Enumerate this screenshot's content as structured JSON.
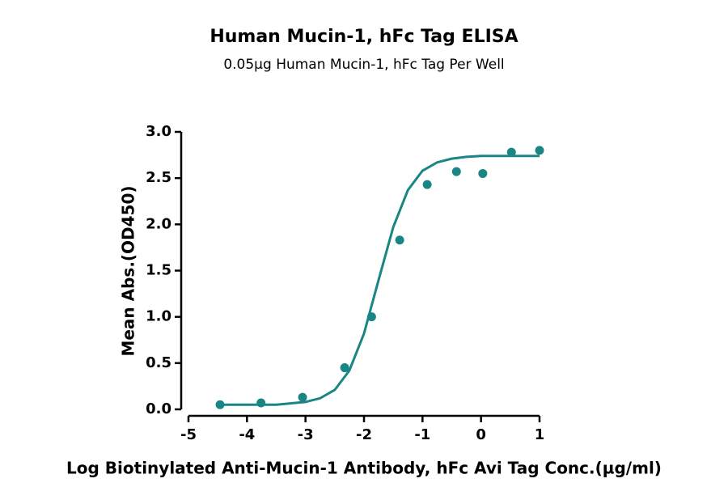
{
  "chart_data": {
    "type": "scatter",
    "title": "Human Mucin-1, hFc Tag ELISA",
    "subtitle": "0.05µg Human Mucin-1, hFc Tag Per Well",
    "x_label": "Log Biotinylated Anti-Mucin-1 Antibody, hFc Avi Tag Conc.(µg/ml)",
    "y_label": "Mean Abs.(OD450)",
    "xlim": [
      -5,
      1
    ],
    "xticks": [
      -5,
      -4,
      -3,
      -2,
      -1,
      0,
      1
    ],
    "ylim": [
      0,
      3
    ],
    "yticks": [
      {
        "value": 0,
        "label": "0.0"
      },
      0.5,
      {
        "value": 1,
        "label": "1.0"
      },
      1.5,
      {
        "value": 2,
        "label": "2.0"
      },
      2.5,
      {
        "value": 3,
        "label": "3.0"
      }
    ],
    "series": [
      {
        "type": "scatter",
        "color": "#1a8585",
        "x": [
          -4.46,
          -3.76,
          -3.05,
          -2.33,
          -1.87,
          -1.39,
          -0.92,
          -0.42,
          0.03,
          0.52,
          1.0
        ],
        "values": [
          0.05,
          0.07,
          0.13,
          0.45,
          1.0,
          1.83,
          2.43,
          2.57,
          2.55,
          2.78,
          2.8
        ]
      },
      {
        "type": "line",
        "color": "#1a8585",
        "x": [
          -4.5,
          -4.0,
          -3.5,
          -3.0,
          -2.75,
          -2.5,
          -2.25,
          -2.0,
          -1.75,
          -1.5,
          -1.25,
          -1.0,
          -0.75,
          -0.5,
          -0.25,
          0,
          0.5,
          1.0
        ],
        "values": [
          0.05,
          0.05,
          0.05,
          0.08,
          0.12,
          0.21,
          0.42,
          0.82,
          1.4,
          1.97,
          2.37,
          2.58,
          2.67,
          2.71,
          2.73,
          2.74,
          2.74,
          2.74
        ]
      }
    ]
  }
}
